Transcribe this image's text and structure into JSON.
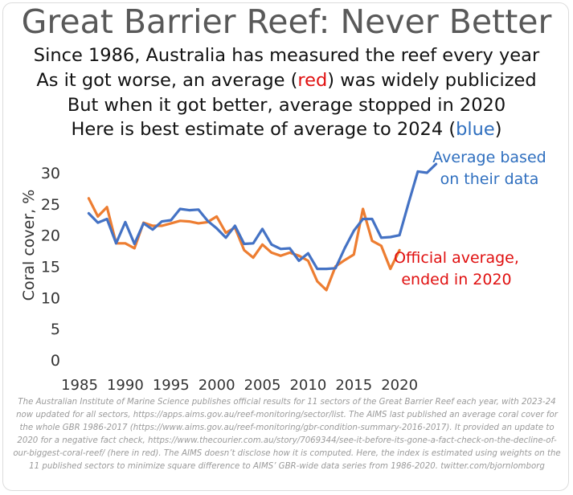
{
  "header": {
    "title": "Great Barrier Reef: Never Better",
    "line1": "Since 1986, Australia has measured the reef every year",
    "line2_pre": "As it got worse, an average (",
    "line2_red": "red",
    "line2_post": ") was widely publicized",
    "line3": "But when it got better, average stopped in 2020",
    "line4_pre": "Here is best estimate of average to 2024 (",
    "line4_blue": "blue",
    "line4_post": ")"
  },
  "colors": {
    "blue": "#4472c4",
    "orange": "#ed7d31",
    "red_label": "#e01010",
    "blue_label": "#2f6fbf"
  },
  "chart_data": {
    "type": "line",
    "ylabel": "Coral cover, %",
    "xlabel": "",
    "xlim": [
      1985,
      2025
    ],
    "ylim": [
      0,
      30
    ],
    "xticks": [
      1985,
      1990,
      1995,
      2000,
      2005,
      2010,
      2015,
      2020
    ],
    "yticks": [
      0,
      5,
      10,
      15,
      20,
      25,
      30
    ],
    "grid": false,
    "series": [
      {
        "name": "Official average, ended in 2020",
        "label_lines": [
          "Official average,",
          "ended in 2020"
        ],
        "color": "#ed7d31",
        "x": [
          1986,
          1987,
          1988,
          1989,
          1990,
          1991,
          1992,
          1993,
          1994,
          1995,
          1996,
          1997,
          1998,
          1999,
          2000,
          2001,
          2002,
          2003,
          2004,
          2005,
          2006,
          2007,
          2008,
          2009,
          2010,
          2011,
          2012,
          2013,
          2014,
          2015,
          2016,
          2017,
          2018,
          2019,
          2020
        ],
        "y": [
          25.9,
          23.0,
          24.5,
          18.7,
          18.7,
          17.9,
          22.0,
          21.5,
          21.5,
          21.9,
          22.3,
          22.2,
          21.9,
          22.1,
          23.0,
          20.4,
          21.2,
          17.6,
          16.4,
          18.5,
          17.2,
          16.7,
          17.2,
          16.7,
          15.9,
          12.6,
          11.2,
          15.0,
          16.0,
          16.9,
          24.2,
          19.1,
          18.3,
          14.6,
          17.6
        ]
      },
      {
        "name": "Average based on their data",
        "label_lines": [
          "Average based",
          "on their data"
        ],
        "color": "#4472c4",
        "x": [
          1986,
          1987,
          1988,
          1989,
          1990,
          1991,
          1992,
          1993,
          1994,
          1995,
          1996,
          1997,
          1998,
          1999,
          2000,
          2001,
          2002,
          2003,
          2004,
          2005,
          2006,
          2007,
          2008,
          2009,
          2010,
          2011,
          2012,
          2013,
          2014,
          2015,
          2016,
          2017,
          2018,
          2019,
          2020,
          2021,
          2022,
          2023,
          2024
        ],
        "y": [
          23.5,
          22.0,
          22.6,
          18.7,
          22.1,
          18.6,
          21.9,
          20.9,
          22.2,
          22.4,
          24.2,
          24.0,
          24.1,
          22.3,
          21.1,
          19.6,
          21.5,
          18.6,
          18.7,
          21.0,
          18.5,
          17.8,
          17.9,
          15.9,
          17.1,
          14.6,
          14.6,
          14.7,
          17.9,
          20.7,
          22.6,
          22.6,
          19.6,
          19.7,
          20.0,
          25.2,
          30.2,
          30.0,
          31.4
        ]
      }
    ]
  },
  "footnote": "The Australian Institute of Marine Science publishes official results for 11 sectors of the Great Barrier Reef each year, with 2023-24 now updated for all sectors, https://apps.aims.gov.au/reef-monitoring/sector/list. The AIMS last published an average coral cover for the whole GBR 1986-2017 (https://www.aims.gov.au/reef-monitoring/gbr-condition-summary-2016-2017). It provided an update to 2020 for a negative fact check, https://www.thecourier.com.au/story/7069344/see-it-before-its-gone-a-fact-check-on-the-decline-of-our-biggest-coral-reef/ (here in red). The AIMS doesn’t disclose how it is computed. Here, the index is estimated using weights on the 11 published sectors to minimize square difference to AIMS’ GBR-wide data series from 1986-2020. twitter.com/bjornlomborg"
}
